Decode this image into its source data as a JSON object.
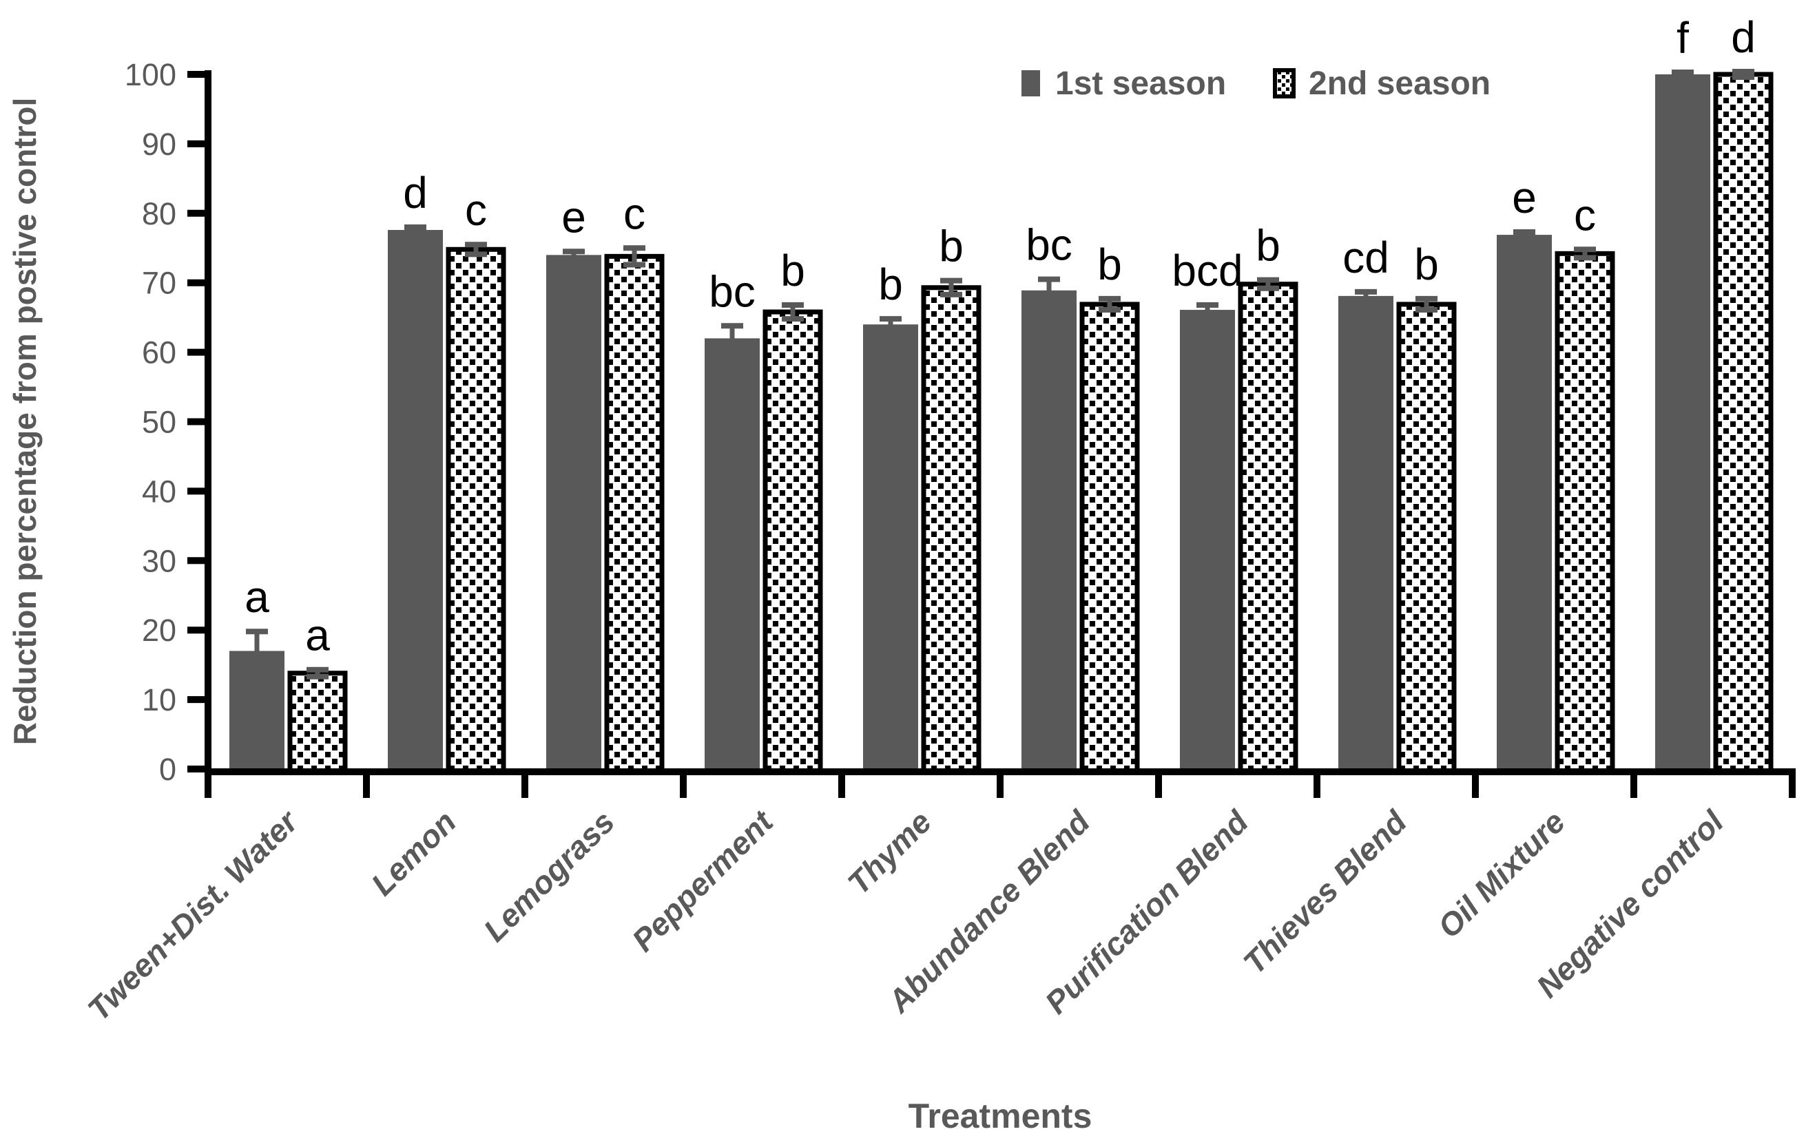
{
  "chart_data": {
    "type": "bar",
    "title": "",
    "xlabel": "Treatments",
    "ylabel": "Reduction percentage from postive control",
    "ylim": [
      0,
      100
    ],
    "ytick_step": 10,
    "grid": false,
    "legend": {
      "position": "top-right-inside",
      "entries": [
        "1st season",
        "2nd season"
      ]
    },
    "categories": [
      "Tween+Dist. Water",
      "Lemon",
      "Lemograss",
      "Pepperment",
      "Thyme",
      "Abundance Blend",
      "Purification Blend",
      "Thieves Blend",
      "Oil Mixture",
      "Negative control"
    ],
    "series": [
      {
        "name": "1st season",
        "fill_style": "solid-gray",
        "values": [
          17,
          77.6,
          74,
          62,
          64,
          68.9,
          66.1,
          68.1,
          76.9,
          100
        ],
        "errors": [
          2.8,
          0.4,
          0.5,
          1.8,
          0.8,
          1.6,
          0.7,
          0.6,
          0.4,
          0.3
        ],
        "sig_letters": [
          "a",
          "d",
          "e",
          "bc",
          "b",
          "bc",
          "bcd",
          "cd",
          "e",
          "f"
        ]
      },
      {
        "name": "2nd season",
        "fill_style": "black-dot-pattern",
        "values": [
          13.8,
          74.8,
          73.8,
          65.8,
          69.3,
          66.9,
          69.8,
          66.9,
          74.2,
          100
        ],
        "errors": [
          0.5,
          0.7,
          1.2,
          1.0,
          1.0,
          0.8,
          0.6,
          0.8,
          0.6,
          0.4
        ],
        "sig_letters": [
          "a",
          "c",
          "c",
          "b",
          "b",
          "b",
          "b",
          "b",
          "c",
          "d"
        ]
      }
    ],
    "colors": {
      "bar_gray": "#595959",
      "error_bar": "#595959",
      "axis": "#000000",
      "axis_text": "#595959",
      "sig_letters": "#000000",
      "pattern_dot": "#000000",
      "pattern_bg": "#ffffff"
    }
  }
}
